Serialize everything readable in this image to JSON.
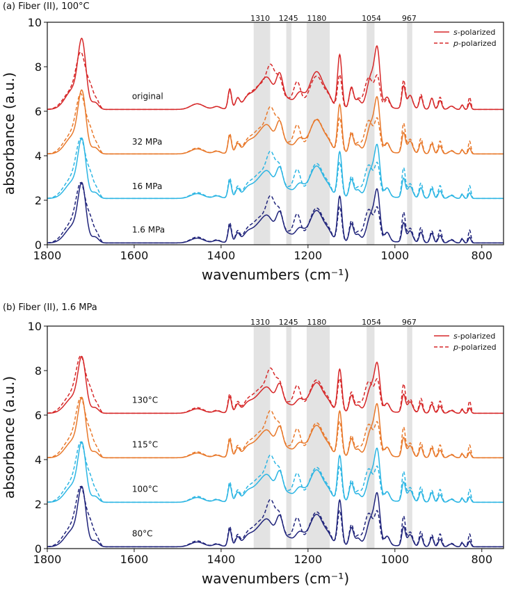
{
  "chart_data": [
    {
      "type": "line",
      "title": "(a) Fiber (II), 100°C",
      "xlabel": "wavenumbers (cm⁻¹)",
      "ylabel": "absorbance (a.u.)",
      "xlim": [
        1800,
        750
      ],
      "ylim": [
        0,
        10
      ],
      "xticks": [
        "1800",
        "1600",
        "1400",
        "1200",
        "1000",
        "800"
      ],
      "yticks": [
        "0",
        "2",
        "4",
        "6",
        "8",
        "10"
      ],
      "bands": [
        {
          "label": "1310",
          "center": 1310,
          "from": 1325,
          "to": 1287
        },
        {
          "label": "1245",
          "center": 1245,
          "from": 1250,
          "to": 1238
        },
        {
          "label": "1180",
          "center": 1180,
          "from": 1203,
          "to": 1150
        },
        {
          "label": "1054",
          "center": 1054,
          "from": 1065,
          "to": 1047
        },
        {
          "label": "967",
          "center": 967,
          "from": 972,
          "to": 960
        }
      ],
      "legend": {
        "position": "top-right",
        "s_label": "s",
        "s_suffix": "-polarized",
        "p_label": "p",
        "p_suffix": "-polarized"
      },
      "series": [
        {
          "name": "original",
          "color": "#d62728",
          "offset": 6,
          "label_x": 1605,
          "label_y": 6.55,
          "s_scale": 1.0,
          "p_scale": 1.0
        },
        {
          "name": "32 MPa",
          "color": "#e8782a",
          "offset": 4,
          "label_x": 1605,
          "label_y": 4.5,
          "s_scale": 0.9,
          "p_scale": 1.05
        },
        {
          "name": "16 MPa",
          "color": "#2bb5e3",
          "offset": 2,
          "label_x": 1605,
          "label_y": 2.5,
          "s_scale": 0.85,
          "p_scale": 1.05
        },
        {
          "name": "1.6 MPa",
          "color": "#1f237a",
          "offset": 0,
          "label_x": 1605,
          "label_y": 0.55,
          "s_scale": 0.85,
          "p_scale": 1.05
        }
      ]
    },
    {
      "type": "line",
      "title": "(b) Fiber (II), 1.6 MPa",
      "xlabel": "wavenumbers (cm⁻¹)",
      "ylabel": "absorbance (a.u.)",
      "xlim": [
        1800,
        750
      ],
      "ylim": [
        0,
        10
      ],
      "xticks": [
        "1800",
        "1600",
        "1400",
        "1200",
        "1000",
        "800"
      ],
      "yticks": [
        "0",
        "2",
        "4",
        "6",
        "8",
        "10"
      ],
      "bands": [
        {
          "label": "1310",
          "center": 1310,
          "from": 1325,
          "to": 1287
        },
        {
          "label": "1245",
          "center": 1245,
          "from": 1250,
          "to": 1238
        },
        {
          "label": "1180",
          "center": 1180,
          "from": 1203,
          "to": 1150
        },
        {
          "label": "1054",
          "center": 1054,
          "from": 1065,
          "to": 1047
        },
        {
          "label": "967",
          "center": 967,
          "from": 972,
          "to": 960
        }
      ],
      "legend": {
        "position": "top-right",
        "s_label": "s",
        "s_suffix": "-polarized",
        "p_label": "p",
        "p_suffix": "-polarized"
      },
      "series": [
        {
          "name": "130°C",
          "color": "#d62728",
          "offset": 6,
          "label_x": 1605,
          "label_y": 6.55,
          "s_scale": 0.8,
          "p_scale": 1.0
        },
        {
          "name": "115°C",
          "color": "#e8782a",
          "offset": 4,
          "label_x": 1605,
          "label_y": 4.55,
          "s_scale": 0.85,
          "p_scale": 1.05
        },
        {
          "name": "100°C",
          "color": "#2bb5e3",
          "offset": 2,
          "label_x": 1605,
          "label_y": 2.55,
          "s_scale": 0.85,
          "p_scale": 1.05
        },
        {
          "name": "80°C",
          "color": "#1f237a",
          "offset": 0,
          "label_x": 1605,
          "label_y": 0.55,
          "s_scale": 0.85,
          "p_scale": 1.05
        }
      ]
    }
  ],
  "spectrum_peaks": {
    "s": [
      [
        1720,
        2.7,
        9
      ],
      [
        1740,
        0.9,
        18
      ],
      [
        1690,
        0.3,
        8
      ],
      [
        1455,
        0.25,
        15
      ],
      [
        1410,
        0.12,
        8
      ],
      [
        1380,
        0.9,
        4
      ],
      [
        1362,
        0.45,
        5
      ],
      [
        1340,
        0.35,
        10
      ],
      [
        1310,
        0.9,
        18
      ],
      [
        1290,
        0.8,
        12
      ],
      [
        1265,
        1.4,
        8
      ],
      [
        1245,
        0.3,
        8
      ],
      [
        1220,
        0.6,
        10
      ],
      [
        1180,
        1.6,
        16
      ],
      [
        1152,
        0.3,
        8
      ],
      [
        1127,
        2.4,
        5
      ],
      [
        1100,
        0.95,
        5
      ],
      [
        1085,
        0.4,
        6
      ],
      [
        1054,
        1.5,
        10
      ],
      [
        1040,
        2.2,
        6
      ],
      [
        1018,
        0.5,
        6
      ],
      [
        980,
        1.0,
        4
      ],
      [
        965,
        0.6,
        6
      ],
      [
        940,
        0.55,
        4
      ],
      [
        915,
        0.5,
        4
      ],
      [
        896,
        0.4,
        4
      ],
      [
        870,
        0.15,
        6
      ],
      [
        845,
        0.2,
        3
      ],
      [
        828,
        0.3,
        3
      ]
    ],
    "p": [
      [
        1722,
        2.2,
        11
      ],
      [
        1745,
        0.8,
        18
      ],
      [
        1700,
        0.8,
        8
      ],
      [
        1685,
        0.3,
        6
      ],
      [
        1455,
        0.25,
        15
      ],
      [
        1410,
        0.12,
        8
      ],
      [
        1380,
        0.85,
        4
      ],
      [
        1362,
        0.45,
        5
      ],
      [
        1340,
        0.35,
        10
      ],
      [
        1310,
        1.0,
        18
      ],
      [
        1285,
        1.5,
        10
      ],
      [
        1265,
        1.1,
        8
      ],
      [
        1245,
        0.3,
        8
      ],
      [
        1225,
        1.1,
        8
      ],
      [
        1180,
        1.4,
        16
      ],
      [
        1152,
        0.3,
        8
      ],
      [
        1127,
        1.5,
        5
      ],
      [
        1100,
        0.9,
        5
      ],
      [
        1085,
        0.4,
        6
      ],
      [
        1060,
        1.4,
        10
      ],
      [
        1040,
        1.3,
        6
      ],
      [
        1018,
        0.4,
        6
      ],
      [
        980,
        1.25,
        4
      ],
      [
        965,
        0.6,
        6
      ],
      [
        940,
        0.65,
        4
      ],
      [
        915,
        0.5,
        4
      ],
      [
        896,
        0.55,
        4
      ],
      [
        870,
        0.15,
        6
      ],
      [
        845,
        0.2,
        3
      ],
      [
        828,
        0.55,
        3
      ]
    ]
  }
}
